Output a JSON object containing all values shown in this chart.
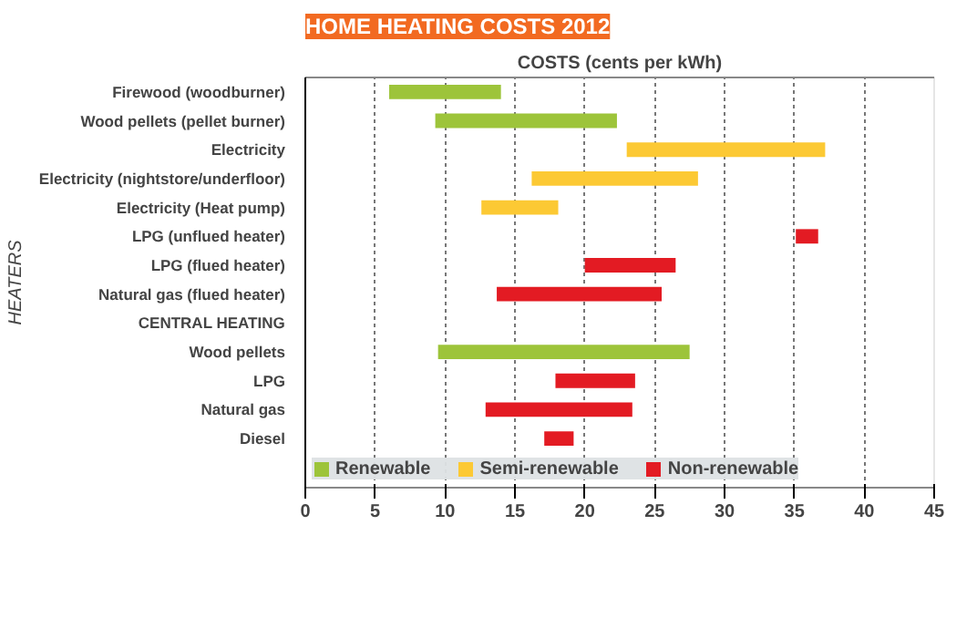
{
  "chart_data": {
    "type": "bar",
    "orientation": "horizontal",
    "title": "HOME HEATING COSTS 2012",
    "xlabel": "COSTS (cents per kWh)",
    "ylabel": "HEATERS",
    "categories": [
      "Firewood (woodburner)",
      "Wood pellets (pellet burner)",
      "Electricity",
      "Electricity (nightstore/underfloor)",
      "Electricity (Heat pump)",
      "LPG (unflued heater)",
      "LPG (flued heater)",
      "Natural gas (flued heater)",
      "CENTRAL HEATING",
      "Wood pellets",
      "LPG",
      "Natural gas",
      "Diesel"
    ],
    "series": [
      {
        "name": "Renewable",
        "color": "#9dc43a",
        "base": [
          6,
          9.3,
          null,
          null,
          null,
          null,
          null,
          null,
          null,
          9.5,
          null,
          null,
          null
        ],
        "values": [
          8,
          13,
          null,
          null,
          null,
          null,
          null,
          null,
          null,
          18,
          null,
          null,
          null
        ]
      },
      {
        "name": "Semi-renewable",
        "color": "#fcc934",
        "base": [
          null,
          null,
          23,
          16.2,
          12.6,
          null,
          null,
          null,
          null,
          null,
          null,
          null,
          null
        ],
        "values": [
          null,
          null,
          14.2,
          11.9,
          5.5,
          null,
          null,
          null,
          null,
          null,
          null,
          null,
          null
        ]
      },
      {
        "name": "Non-renewable",
        "color": "#e31b23",
        "base": [
          null,
          null,
          null,
          null,
          null,
          35.1,
          20,
          13.7,
          null,
          null,
          17.9,
          12.9,
          17.1
        ],
        "values": [
          null,
          null,
          null,
          null,
          null,
          1.6,
          6.5,
          11.8,
          null,
          null,
          5.7,
          10.5,
          2.1
        ]
      }
    ],
    "xlim": [
      0,
      45
    ],
    "xticks": [
      0,
      5,
      10,
      15,
      20,
      25,
      30,
      35,
      40,
      45
    ],
    "grid": "x",
    "legend": "bottom"
  }
}
